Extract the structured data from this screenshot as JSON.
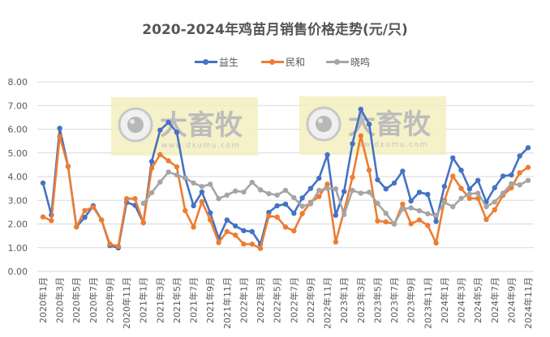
{
  "chart": {
    "title": "2020-2024年鸡苗月销售价格走势(元/只)",
    "watermark": {
      "text": "大畜牧",
      "url_text": "www.dxumu.com"
    }
  },
  "legend": [
    {
      "name": "益生",
      "color": "#4472C4"
    },
    {
      "name": "民和",
      "color": "#ED7D31"
    },
    {
      "name": "晓鸣",
      "color": "#A5A5A5"
    }
  ],
  "chart_data": {
    "type": "line",
    "title": "2020-2024年鸡苗月销售价格走势(元/只)",
    "xlabel": "",
    "ylabel": "",
    "ylim": [
      0,
      8
    ],
    "yticks": [
      "0.00",
      "1.00",
      "2.00",
      "3.00",
      "4.00",
      "5.00",
      "6.00",
      "7.00",
      "8.00"
    ],
    "grid": true,
    "legend_position": "top",
    "x": [
      "2020年1月",
      "2020年2月",
      "2020年3月",
      "2020年4月",
      "2020年5月",
      "2020年6月",
      "2020年7月",
      "2020年8月",
      "2020年9月",
      "2020年10月",
      "2020年11月",
      "2020年12月",
      "2021年1月",
      "2021年2月",
      "2021年3月",
      "2021年4月",
      "2021年5月",
      "2021年6月",
      "2021年7月",
      "2021年8月",
      "2021年9月",
      "2021年10月",
      "2021年11月",
      "2021年12月",
      "2022年1月",
      "2022年2月",
      "2022年3月",
      "2022年4月",
      "2022年5月",
      "2022年6月",
      "2022年7月",
      "2022年8月",
      "2022年9月",
      "2022年10月",
      "2022年11月",
      "2022年12月",
      "2023年1月",
      "2023年2月",
      "2023年3月",
      "2023年4月",
      "2023年5月",
      "2023年6月",
      "2023年7月",
      "2023年8月",
      "2023年9月",
      "2023年10月",
      "2023年11月",
      "2023年12月",
      "2024年1月",
      "2024年2月",
      "2024年3月",
      "2024年4月",
      "2024年5月",
      "2024年6月",
      "2024年7月",
      "2024年8月",
      "2024年9月",
      "2024年10月",
      "2024年11月"
    ],
    "xtick_labels": [
      "2020年1月",
      "2020年3月",
      "2020年5月",
      "2020年7月",
      "2020年9月",
      "2020年11月",
      "2021年1月",
      "2021年3月",
      "2021年5月",
      "2021年7月",
      "2021年9月",
      "2021年11月",
      "2022年1月",
      "2022年3月",
      "2022年5月",
      "2022年7月",
      "2022年9月",
      "2022年11月",
      "2023年1月",
      "2023年3月",
      "2023年5月",
      "2023年7月",
      "2023年9月",
      "2023年11月",
      "2024年1月",
      "2024年3月",
      "2024年5月",
      "2024年7月",
      "2024年9月",
      "2024年11月"
    ],
    "series": [
      {
        "name": "益生",
        "color": "#4472C4",
        "values": [
          3.73,
          2.38,
          6.04,
          4.43,
          1.88,
          2.28,
          2.77,
          2.17,
          1.09,
          0.99,
          2.91,
          2.79,
          2.05,
          4.64,
          5.96,
          6.29,
          5.87,
          3.95,
          2.77,
          3.35,
          2.47,
          1.4,
          2.17,
          1.92,
          1.72,
          1.68,
          1.15,
          2.49,
          2.77,
          2.84,
          2.45,
          3.1,
          3.5,
          3.93,
          4.92,
          2.37,
          3.37,
          5.39,
          6.84,
          6.21,
          3.87,
          3.48,
          3.73,
          4.23,
          2.97,
          3.34,
          3.25,
          2.11,
          3.59,
          4.79,
          4.27,
          3.48,
          3.84,
          2.93,
          3.53,
          4.02,
          4.07,
          4.87,
          5.22
        ]
      },
      {
        "name": "民和",
        "color": "#ED7D31",
        "values": [
          2.3,
          2.14,
          5.69,
          4.43,
          1.88,
          2.57,
          2.71,
          2.17,
          1.15,
          1.06,
          3.07,
          3.07,
          2.05,
          4.35,
          4.93,
          4.67,
          4.41,
          2.56,
          1.87,
          2.94,
          2.17,
          1.22,
          1.68,
          1.53,
          1.15,
          1.15,
          0.97,
          2.34,
          2.29,
          1.87,
          1.71,
          2.44,
          2.91,
          3.16,
          3.68,
          1.24,
          2.55,
          3.97,
          5.72,
          4.27,
          2.13,
          2.09,
          2.0,
          2.84,
          2.01,
          2.17,
          1.94,
          1.2,
          3.0,
          4.02,
          3.5,
          3.08,
          3.08,
          2.19,
          2.6,
          3.21,
          3.53,
          4.16,
          4.39
        ]
      },
      {
        "name": "晓鸣",
        "color": "#A5A5A5",
        "values": [
          null,
          null,
          null,
          null,
          null,
          null,
          null,
          null,
          null,
          null,
          null,
          null,
          2.87,
          3.32,
          3.77,
          4.19,
          4.07,
          3.94,
          3.73,
          3.58,
          3.68,
          3.07,
          3.22,
          3.39,
          3.35,
          3.76,
          3.44,
          3.28,
          3.22,
          3.42,
          3.11,
          2.75,
          2.85,
          3.42,
          3.5,
          3.48,
          2.4,
          3.42,
          3.3,
          3.34,
          2.87,
          2.45,
          2.0,
          2.64,
          2.68,
          2.56,
          2.43,
          2.36,
          2.91,
          2.73,
          3.08,
          3.27,
          3.3,
          2.73,
          2.93,
          3.3,
          3.7,
          3.65,
          3.84
        ]
      }
    ]
  }
}
